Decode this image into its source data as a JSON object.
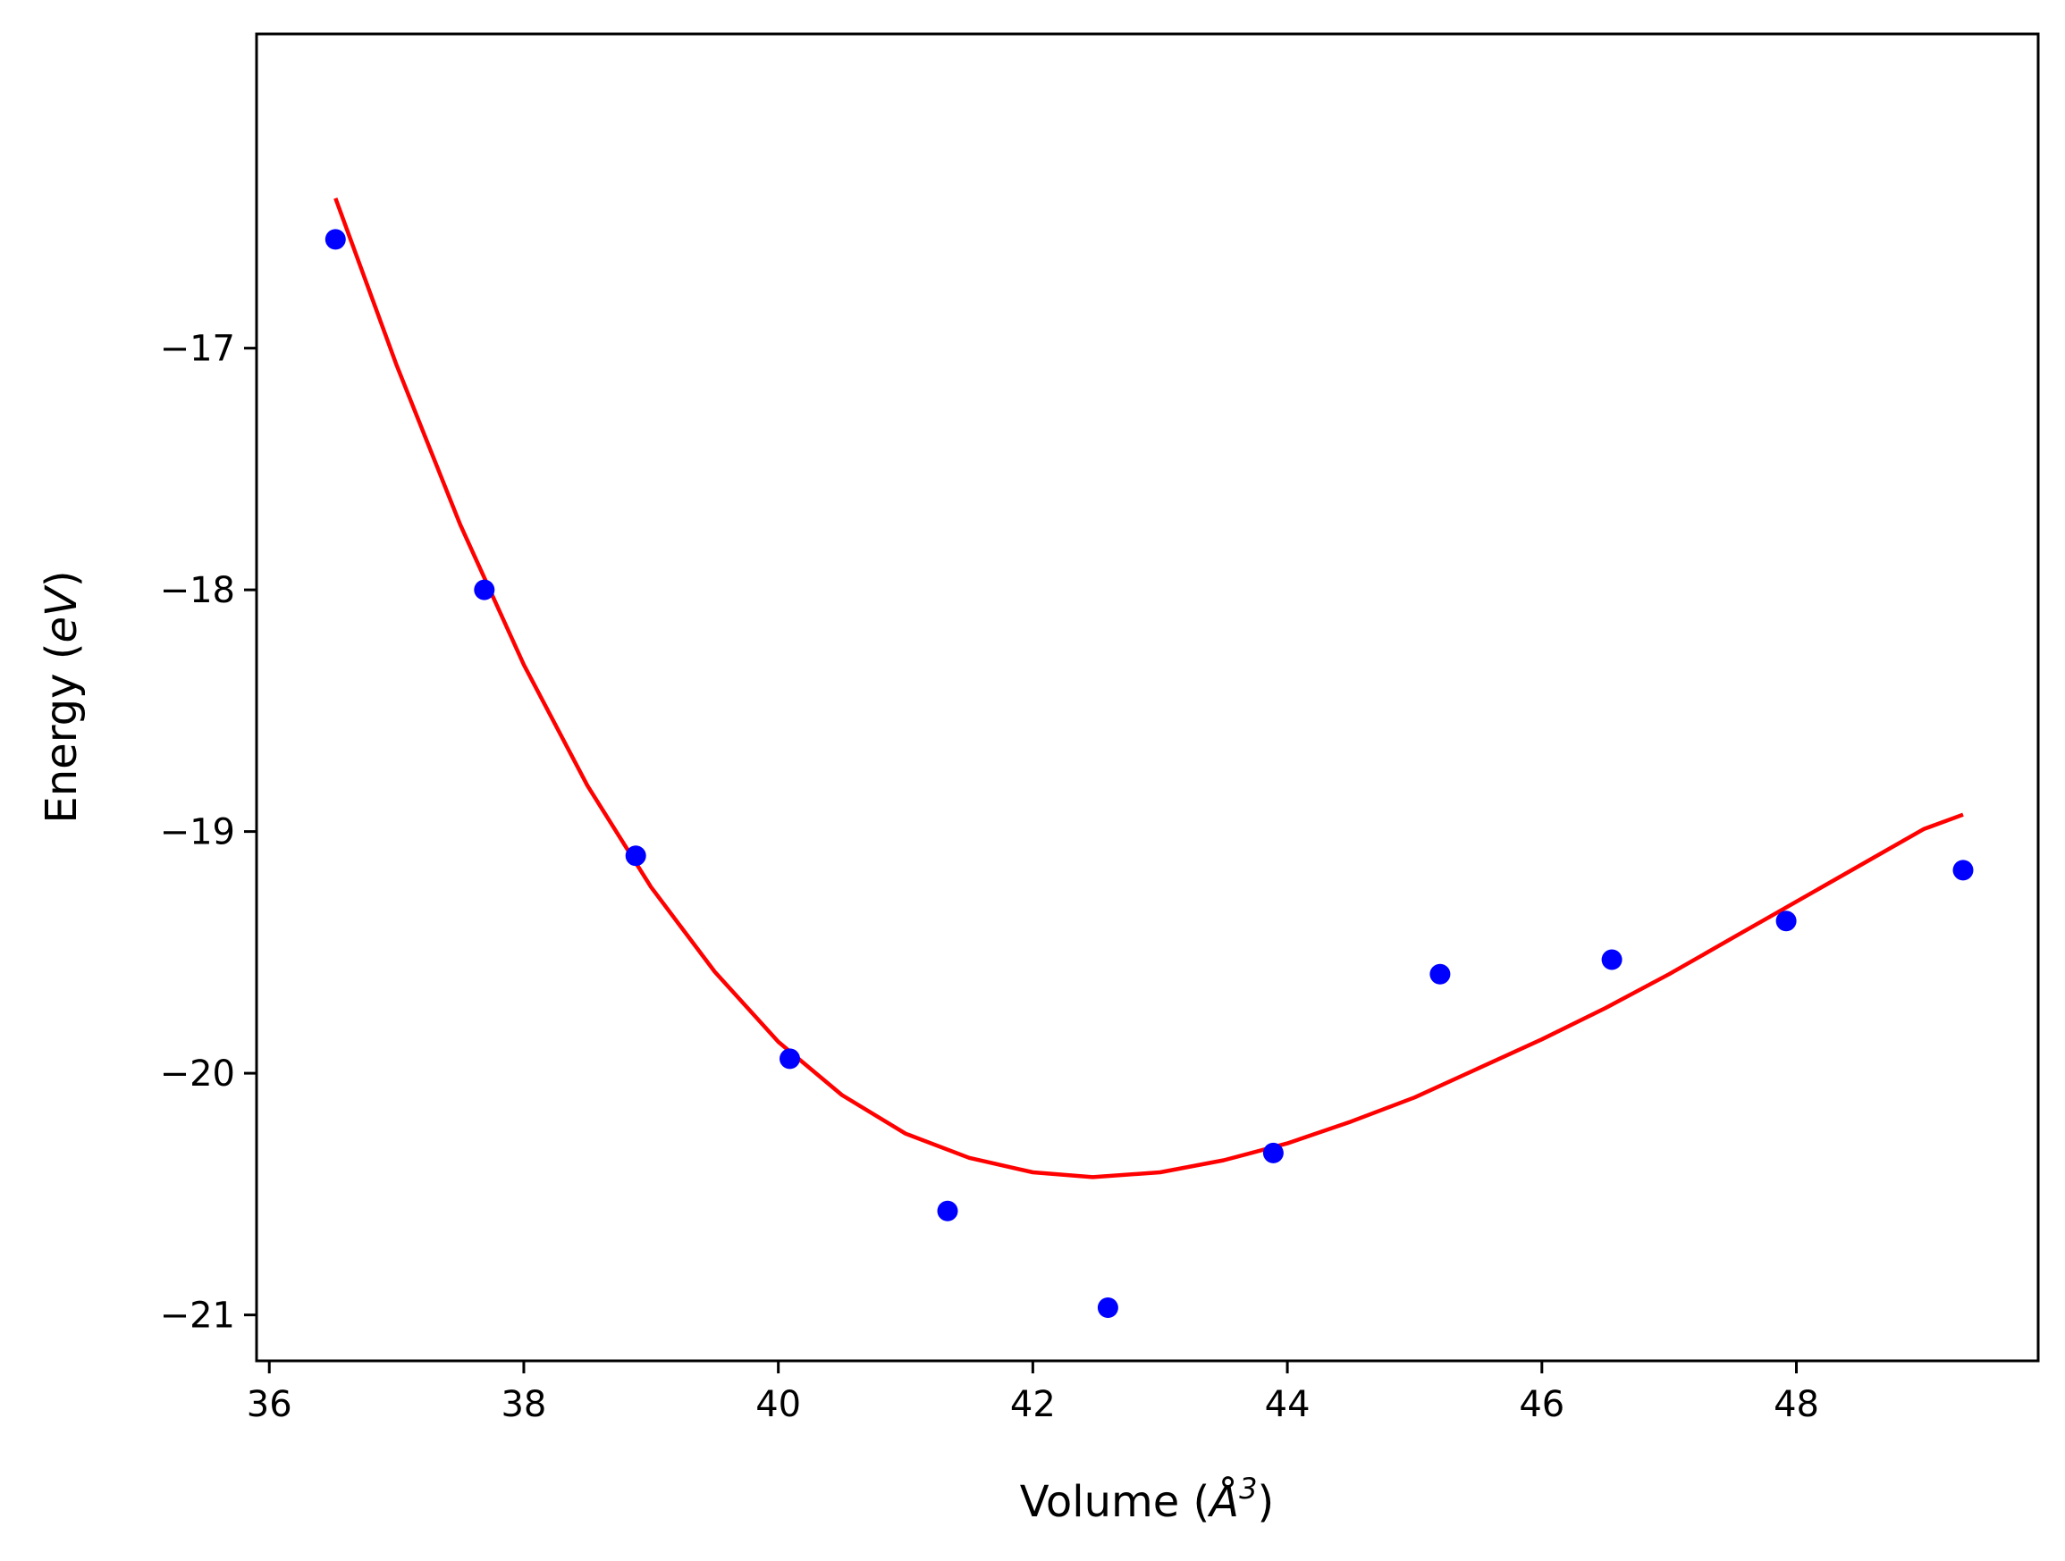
{
  "chart_data": {
    "type": "scatter",
    "title": "",
    "xlabel": {
      "prefix": "Volume (",
      "symbol": "Å",
      "sup": "3",
      "suffix": ")"
    },
    "ylabel": {
      "prefix": "Energy (",
      "symbol": "eV",
      "suffix": ")"
    },
    "xlim": [
      35.9,
      49.9
    ],
    "ylim": [
      -21.19,
      -15.7
    ],
    "xticks": [
      36,
      38,
      40,
      42,
      44,
      46,
      48
    ],
    "yticks": [
      -17,
      -18,
      -19,
      -20,
      -21
    ],
    "xtick_labels": [
      "36",
      "38",
      "40",
      "42",
      "44",
      "46",
      "48"
    ],
    "ytick_labels": [
      "−17",
      "−18",
      "−19",
      "−20",
      "−21"
    ],
    "grid": false,
    "series": [
      {
        "kind": "scatter",
        "color": "#0000ff",
        "points": [
          [
            36.52,
            -16.55
          ],
          [
            37.69,
            -18.0
          ],
          [
            38.88,
            -19.1
          ],
          [
            40.09,
            -19.94
          ],
          [
            41.33,
            -20.57
          ],
          [
            42.59,
            -20.97
          ],
          [
            43.89,
            -20.33
          ],
          [
            45.2,
            -19.59
          ],
          [
            46.55,
            -19.53
          ],
          [
            47.92,
            -19.37
          ],
          [
            49.31,
            -19.16
          ]
        ]
      },
      {
        "kind": "fit-line",
        "color": "#ff0000",
        "points": [
          [
            36.52,
            -16.38
          ],
          [
            37.0,
            -17.07
          ],
          [
            37.5,
            -17.73
          ],
          [
            38.0,
            -18.31
          ],
          [
            38.5,
            -18.81
          ],
          [
            39.0,
            -19.23
          ],
          [
            39.5,
            -19.58
          ],
          [
            40.0,
            -19.87
          ],
          [
            40.5,
            -20.09
          ],
          [
            41.0,
            -20.25
          ],
          [
            41.5,
            -20.35
          ],
          [
            42.0,
            -20.41
          ],
          [
            42.47,
            -20.43
          ],
          [
            43.0,
            -20.41
          ],
          [
            43.5,
            -20.36
          ],
          [
            44.0,
            -20.29
          ],
          [
            44.5,
            -20.2
          ],
          [
            45.0,
            -20.1
          ],
          [
            45.5,
            -19.98
          ],
          [
            46.0,
            -19.86
          ],
          [
            46.5,
            -19.73
          ],
          [
            47.0,
            -19.59
          ],
          [
            47.5,
            -19.44
          ],
          [
            48.0,
            -19.29
          ],
          [
            48.5,
            -19.14
          ],
          [
            49.0,
            -18.99
          ],
          [
            49.31,
            -18.93
          ]
        ]
      }
    ]
  }
}
